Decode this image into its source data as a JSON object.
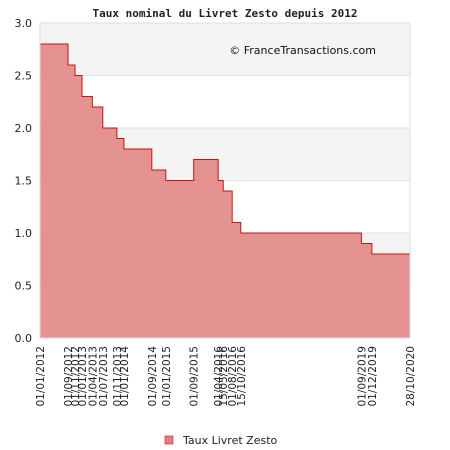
{
  "chart_data": {
    "type": "area",
    "title": "Taux nominal du Livret Zesto depuis 2012",
    "watermark": "© FranceTransactions.com",
    "xlabel": "",
    "ylabel": "",
    "ylim": [
      0,
      3.0
    ],
    "yticks": [
      "0.0",
      "0.5",
      "1.0",
      "1.5",
      "2.0",
      "2.5",
      "3.0"
    ],
    "grid": true,
    "legend_position": "bottom-center",
    "colors": {
      "fill": "#e07f7f",
      "line": "#cc1111",
      "band": "#f4f4f4"
    },
    "series": [
      {
        "name": "Taux Livret Zesto",
        "points": [
          {
            "date": "01/01/2012",
            "value": 2.8
          },
          {
            "date": "01/09/2012",
            "value": 2.6
          },
          {
            "date": "01/11/2012",
            "value": 2.5
          },
          {
            "date": "01/01/2013",
            "value": 2.3
          },
          {
            "date": "01/04/2013",
            "value": 2.2
          },
          {
            "date": "01/07/2013",
            "value": 2.0
          },
          {
            "date": "01/11/2013",
            "value": 1.9
          },
          {
            "date": "01/01/2014",
            "value": 1.8
          },
          {
            "date": "01/09/2014",
            "value": 1.6
          },
          {
            "date": "01/01/2015",
            "value": 1.5
          },
          {
            "date": "01/09/2015",
            "value": 1.7
          },
          {
            "date": "01/04/2016",
            "value": 1.5
          },
          {
            "date": "15/05/2016",
            "value": 1.4
          },
          {
            "date": "01/08/2016",
            "value": 1.1
          },
          {
            "date": "15/10/2016",
            "value": 1.0
          },
          {
            "date": "01/09/2019",
            "value": 0.9
          },
          {
            "date": "01/12/2019",
            "value": 0.8
          },
          {
            "date": "28/10/2020",
            "value": 0.8
          }
        ]
      }
    ]
  }
}
